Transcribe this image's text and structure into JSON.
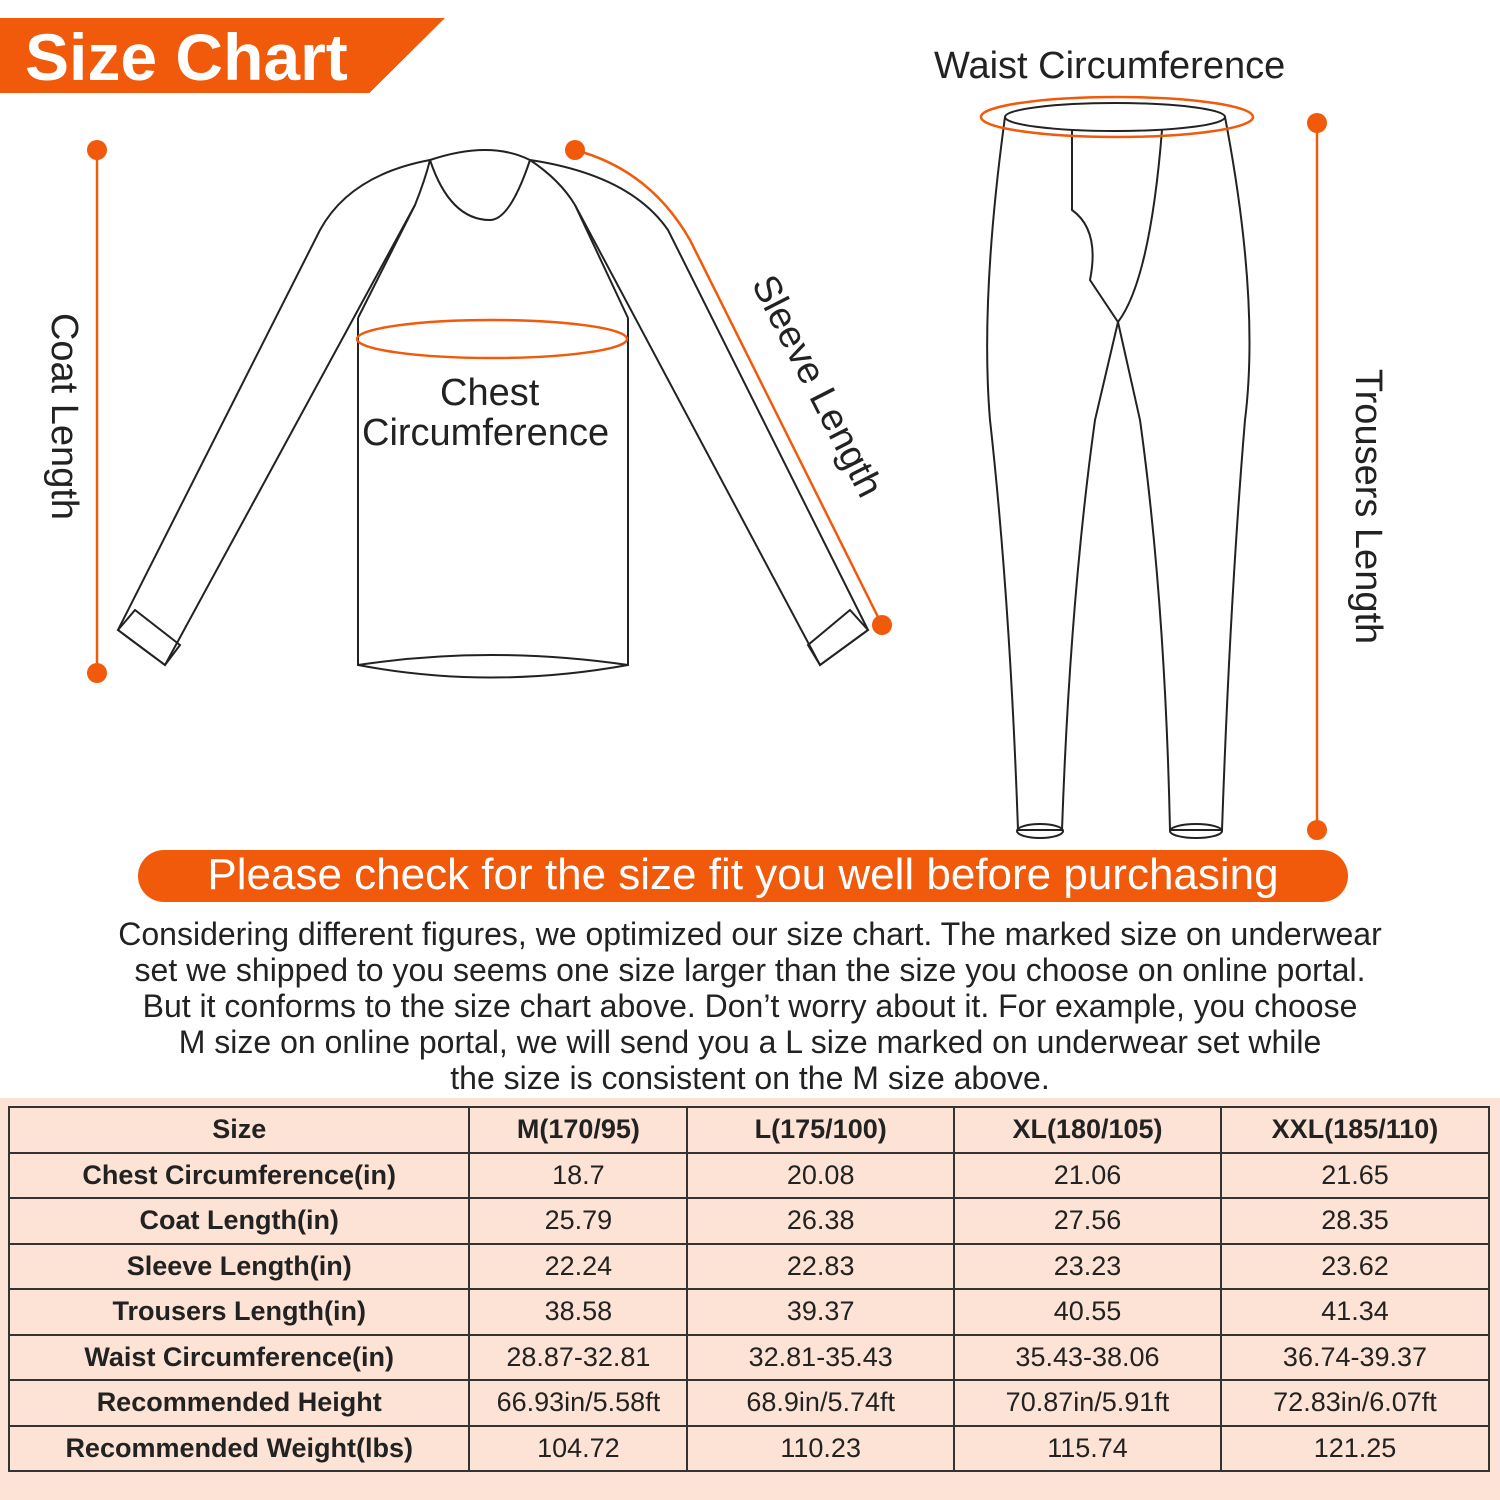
{
  "title": "Size Chart",
  "colors": {
    "accent": "#f05a0a",
    "table_bg": "#fde3d5"
  },
  "labels": {
    "coat_length": "Coat Length",
    "sleeve_length": "Sleeve Length",
    "chest_line1": "Chest",
    "chest_line2": "Circumference",
    "waist": "Waist Circumference",
    "trousers_length": "Trousers Length"
  },
  "notice": "Please check for the size fit you well before purchasing",
  "description": [
    "Considering different figures, we optimized our size chart. The marked size on underwear",
    "set we shipped to you seems one size larger than the size you choose on online portal.",
    "But it conforms to the size chart above. Don’t worry about it. For example, you choose",
    "M size on online portal, we will send you a L size marked on underwear set while",
    "the size is consistent on the M size above."
  ],
  "table": {
    "headers": [
      "Size",
      "M(170/95)",
      "L(175/100)",
      "XL(180/105)",
      "XXL(185/110)"
    ],
    "rows": [
      [
        "Chest Circumference(in)",
        "18.7",
        "20.08",
        "21.06",
        "21.65"
      ],
      [
        "Coat Length(in)",
        "25.79",
        "26.38",
        "27.56",
        "28.35"
      ],
      [
        "Sleeve Length(in)",
        "22.24",
        "22.83",
        "23.23",
        "23.62"
      ],
      [
        "Trousers Length(in)",
        "38.58",
        "39.37",
        "40.55",
        "41.34"
      ],
      [
        "Waist Circumference(in)",
        "28.87-32.81",
        "32.81-35.43",
        "35.43-38.06",
        "36.74-39.37"
      ],
      [
        "Recommended Height",
        "66.93in/5.58ft",
        "68.9in/5.74ft",
        "70.87in/5.91ft",
        "72.83in/6.07ft"
      ],
      [
        "Recommended Weight(lbs)",
        "104.72",
        "110.23",
        "115.74",
        "121.25"
      ]
    ]
  }
}
